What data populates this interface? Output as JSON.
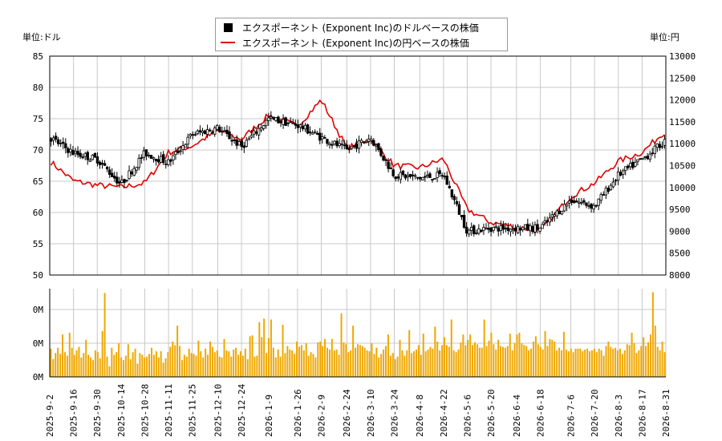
{
  "units": {
    "left": "単位:ドル",
    "right": "単位:円"
  },
  "legend": {
    "usd_label": "エクスポーネント (Exponent Inc)のドルベースの株価",
    "jpy_label": "エクスポーネント (Exponent Inc)の円ベースの株価"
  },
  "colors": {
    "usd": "#000000",
    "jpy": "#e00000",
    "volume": "#f0a800",
    "grid": "#c8c8c8"
  },
  "chart_data": [
    {
      "type": "line",
      "title": "",
      "series": [
        {
          "name": "エクスポーネント (Exponent Inc)のドルベースの株価",
          "axis": "left",
          "style": "candlestick",
          "x": [
            "2025-09-02",
            "2025-09-16",
            "2025-09-30",
            "2025-10-14",
            "2025-10-28",
            "2025-11-11",
            "2025-11-25",
            "2025-12-10",
            "2025-12-24",
            "2026-01-09",
            "2026-01-26",
            "2026-02-09",
            "2026-02-24",
            "2026-03-10",
            "2026-03-24",
            "2026-04-08",
            "2026-04-22",
            "2026-05-06",
            "2026-05-20",
            "2026-06-04",
            "2026-06-18",
            "2026-07-06",
            "2026-07-20",
            "2026-08-03",
            "2026-08-17",
            "2026-08-31"
          ],
          "values": [
            72.0,
            69.5,
            68.5,
            64.5,
            69.5,
            68.0,
            72.5,
            73.5,
            70.5,
            75.0,
            74.0,
            72.0,
            70.0,
            72.0,
            66.0,
            65.5,
            66.0,
            57.0,
            57.5,
            57.5,
            57.5,
            62.0,
            61.0,
            66.0,
            68.5,
            71.5
          ]
        },
        {
          "name": "エクスポーネント (Exponent Inc)の円ベースの株価",
          "axis": "right",
          "style": "line",
          "x": [
            "2025-09-02",
            "2025-09-16",
            "2025-09-30",
            "2025-10-14",
            "2025-10-28",
            "2025-11-11",
            "2025-11-25",
            "2025-12-10",
            "2025-12-24",
            "2026-01-09",
            "2026-01-26",
            "2026-02-09",
            "2026-02-24",
            "2026-03-10",
            "2026-03-24",
            "2026-04-08",
            "2026-04-22",
            "2026-05-06",
            "2026-05-20",
            "2026-06-04",
            "2026-06-18",
            "2026-07-06",
            "2026-07-20",
            "2026-08-03",
            "2026-08-17",
            "2026-08-31"
          ],
          "values": [
            10600,
            10150,
            10050,
            10000,
            10100,
            10800,
            10950,
            11300,
            11100,
            11650,
            11400,
            12000,
            10900,
            11100,
            10500,
            10450,
            10650,
            9500,
            9200,
            9100,
            9000,
            9800,
            10100,
            10600,
            10800,
            11300
          ]
        }
      ],
      "x_ticks": [
        "2025-9-2",
        "2025-9-16",
        "2025-9-30",
        "2025-10-14",
        "2025-10-28",
        "2025-11-11",
        "2025-11-25",
        "2025-12-10",
        "2025-12-24",
        "2026-1-9",
        "2026-1-26",
        "2026-2-9",
        "2026-2-24",
        "2026-3-10",
        "2026-3-24",
        "2026-4-8",
        "2026-4-22",
        "2026-5-6",
        "2026-5-20",
        "2026-6-4",
        "2026-6-18",
        "2026-7-6",
        "2026-7-20",
        "2026-8-3",
        "2026-8-17",
        "2026-8-31"
      ],
      "y_left_ticks": [
        50,
        55,
        60,
        65,
        70,
        75,
        80,
        85
      ],
      "y_right_ticks": [
        8000,
        8500,
        9000,
        9500,
        10000,
        10500,
        11000,
        11500,
        12000,
        12500,
        13000
      ],
      "ylim_left": [
        50,
        85
      ],
      "ylim_right": [
        8000,
        13000
      ],
      "grid": true,
      "legend_position": "top-center"
    },
    {
      "type": "bar",
      "title": "",
      "series": [
        {
          "name": "",
          "values_relative": [
            0.32,
            0.2,
            0.27,
            0.33,
            0.26,
            0.48,
            0.28,
            0.24,
            0.5,
            0.33,
            0.25,
            0.3,
            0.34,
            0.22,
            0.27,
            0.42,
            0.25,
            0.22,
            0.19,
            0.3,
            0.28,
            0.21,
            0.52,
            0.95,
            0.23,
            0.12,
            0.33,
            0.25,
            0.28,
            0.38,
            0.22,
            0.19,
            0.24,
            0.37,
            0.2,
            0.28,
            0.32,
            0.15,
            0.27,
            0.25,
            0.22,
            0.23,
            0.26,
            0.33,
            0.25,
            0.29,
            0.22,
            0.29,
            0.16,
            0.21,
            0.28,
            0.34,
            0.4,
            0.36,
            0.58,
            0.35,
            0.19,
            0.25,
            0.23,
            0.32,
            0.27,
            0.26,
            0.24,
            0.41,
            0.29,
            0.22,
            0.32,
            0.25,
            0.4,
            0.34,
            0.28,
            0.3,
            0.23,
            0.22,
            0.43,
            0.3,
            0.29,
            0.23,
            0.31,
            0.33,
            0.25,
            0.29,
            0.24,
            0.32,
            0.2,
            0.46,
            0.47,
            0.23,
            0.24,
            0.62,
            0.45,
            0.66,
            0.27,
            0.44,
            0.65,
            0.33,
            0.22,
            0.31,
            0.23,
            0.59,
            0.27,
            0.35,
            0.31,
            0.3,
            0.26,
            0.4,
            0.34,
            0.36,
            0.3,
            0.38,
            0.24,
            0.28,
            0.26,
            0.22,
            0.39,
            0.4,
            0.35,
            0.43,
            0.33,
            0.31,
            0.43,
            0.3,
            0.31,
            0.25,
            0.72,
            0.39,
            0.37,
            0.28,
            0.3,
            0.58,
            0.33,
            0.37,
            0.36,
            0.35,
            0.33,
            0.3,
            0.29,
            0.38,
            0.26,
            0.33,
            0.22,
            0.26,
            0.31,
            0.35,
            0.48,
            0.24,
            0.27,
            0.2,
            0.23,
            0.42,
            0.3,
            0.24,
            0.3,
            0.53,
            0.27,
            0.29,
            0.31,
            0.36,
            0.25,
            0.49,
            0.29,
            0.31,
            0.34,
            0.32,
            0.57,
            0.4,
            0.3,
            0.36,
            0.45,
            0.36,
            0.34,
            0.65,
            0.3,
            0.28,
            0.31,
            0.39,
            0.48,
            0.36,
            0.42,
            0.48,
            0.36,
            0.39,
            0.37,
            0.33,
            0.33,
            0.65,
            0.35,
            0.41,
            0.5,
            0.37,
            0.31,
            0.42,
            0.35,
            0.34,
            0.33,
            0.35,
            0.49,
            0.3,
            0.38,
            0.48,
            0.5,
            0.38,
            0.36,
            0.35,
            0.3,
            0.32,
            0.4,
            0.46,
            0.37,
            0.34,
            0.31,
            0.52,
            0.35,
            0.43,
            0.42,
            0.4,
            0.3,
            0.33,
            0.3,
            0.51,
            0.31,
            0.29,
            0.32,
            0.28,
            0.32,
            0.32,
            0.32,
            0.29,
            0.31,
            0.32,
            0.29,
            0.3,
            0.32,
            0.28,
            0.32,
            0.3,
            0.24,
            0.35,
            0.4,
            0.34,
            0.32,
            0.33,
            0.3,
            0.32,
            0.26,
            0.3,
            0.37,
            0.36,
            0.5,
            0.38,
            0.27,
            0.3,
            0.35,
            0.45,
            0.35,
            0.39,
            0.48,
            0.96,
            0.58,
            0.34,
            0.3,
            0.4,
            0.28
          ]
        }
      ],
      "y_ticks": [
        "0M",
        "0M",
        "0M"
      ],
      "grid": true
    }
  ]
}
